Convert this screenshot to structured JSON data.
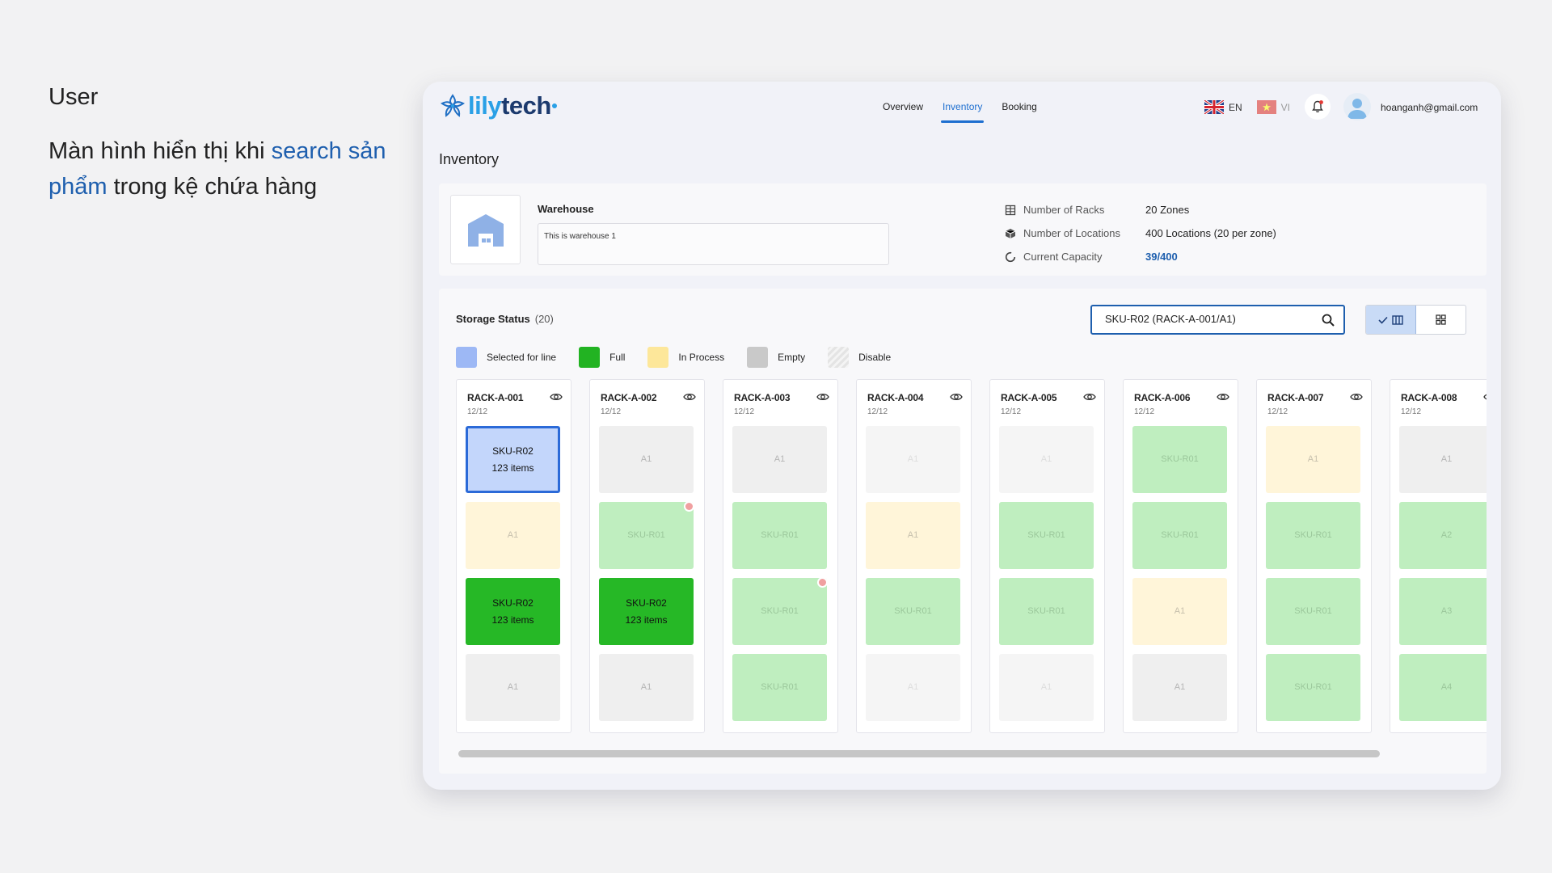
{
  "caption": {
    "role": "User",
    "line_a": "Màn hình hiển thị khi ",
    "line_b": "search sản phẩm",
    "line_c": " trong kệ chứa hàng"
  },
  "brand": {
    "part1": "lily",
    "part2": "tech"
  },
  "nav": {
    "items": [
      "Overview",
      "Inventory",
      "Booking"
    ],
    "active": "Inventory"
  },
  "lang": {
    "en": "EN",
    "vi": "VI"
  },
  "user": {
    "email": "hoanganh@gmail.com"
  },
  "page": {
    "title": "Inventory"
  },
  "warehouse": {
    "name": "Warehouse",
    "description": "This is warehouse 1",
    "stats": [
      {
        "icon": "rack-icon",
        "label": "Number of Racks",
        "value": "20 Zones"
      },
      {
        "icon": "cube-icon",
        "label": "Number of Locations",
        "value": "400 Locations (20 per zone)"
      },
      {
        "icon": "capacity-icon",
        "label": "Current Capacity",
        "value": "39/400"
      }
    ]
  },
  "storage": {
    "title": "Storage Status",
    "count": "(20)",
    "search_value": "SKU-R02 (RACK-A-001/A1)",
    "legend": [
      {
        "label": "Selected for line",
        "color": "#9db8f5"
      },
      {
        "label": "Full",
        "color": "#22b322"
      },
      {
        "label": "In Process",
        "color": "#fde79a"
      },
      {
        "label": "Empty",
        "color": "#c9c9c9"
      },
      {
        "label": "Disable",
        "color": "#e8e8e8"
      }
    ],
    "racks": [
      {
        "name": "RACK-A-001",
        "count": "12/12",
        "cells": [
          {
            "state": "selected",
            "line1": "SKU-R02",
            "line2": "123 items"
          },
          {
            "state": "inproc",
            "line1": "A1"
          },
          {
            "state": "full",
            "line1": "SKU-R02",
            "line2": "123 items"
          },
          {
            "state": "empty",
            "line1": "A1"
          }
        ]
      },
      {
        "name": "RACK-A-002",
        "count": "12/12",
        "cells": [
          {
            "state": "empty",
            "line1": "A1"
          },
          {
            "state": "faded-full",
            "line1": "SKU-R01",
            "warn": true
          },
          {
            "state": "full",
            "line1": "SKU-R02",
            "line2": "123 items"
          },
          {
            "state": "empty",
            "line1": "A1"
          }
        ]
      },
      {
        "name": "RACK-A-003",
        "count": "12/12",
        "cells": [
          {
            "state": "empty",
            "line1": "A1"
          },
          {
            "state": "faded-full",
            "line1": "SKU-R01"
          },
          {
            "state": "faded-full",
            "line1": "SKU-R01",
            "warn": true
          },
          {
            "state": "faded-full",
            "line1": "SKU-R01"
          }
        ]
      },
      {
        "name": "RACK-A-004",
        "count": "12/12",
        "cells": [
          {
            "state": "empty faded",
            "line1": "A1"
          },
          {
            "state": "inproc",
            "line1": "A1"
          },
          {
            "state": "faded-full",
            "line1": "SKU-R01"
          },
          {
            "state": "empty faded",
            "line1": "A1"
          }
        ]
      },
      {
        "name": "RACK-A-005",
        "count": "12/12",
        "cells": [
          {
            "state": "empty faded",
            "line1": "A1"
          },
          {
            "state": "faded-full",
            "line1": "SKU-R01"
          },
          {
            "state": "faded-full",
            "line1": "SKU-R01"
          },
          {
            "state": "empty faded",
            "line1": "A1"
          }
        ]
      },
      {
        "name": "RACK-A-006",
        "count": "12/12",
        "cells": [
          {
            "state": "faded-full",
            "line1": "SKU-R01"
          },
          {
            "state": "faded-full",
            "line1": "SKU-R01"
          },
          {
            "state": "inproc",
            "line1": "A1"
          },
          {
            "state": "empty",
            "line1": "A1"
          }
        ]
      },
      {
        "name": "RACK-A-007",
        "count": "12/12",
        "cells": [
          {
            "state": "inproc",
            "line1": "A1"
          },
          {
            "state": "faded-full",
            "line1": "SKU-R01"
          },
          {
            "state": "faded-full",
            "line1": "SKU-R01"
          },
          {
            "state": "faded-full",
            "line1": "SKU-R01"
          }
        ]
      },
      {
        "name": "RACK-A-008",
        "count": "12/12",
        "cells": [
          {
            "state": "empty",
            "line1": "A1"
          },
          {
            "state": "faded-full",
            "line1": "A2"
          },
          {
            "state": "faded-full",
            "line1": "A3"
          },
          {
            "state": "faded-full",
            "line1": "A4"
          }
        ]
      }
    ]
  }
}
